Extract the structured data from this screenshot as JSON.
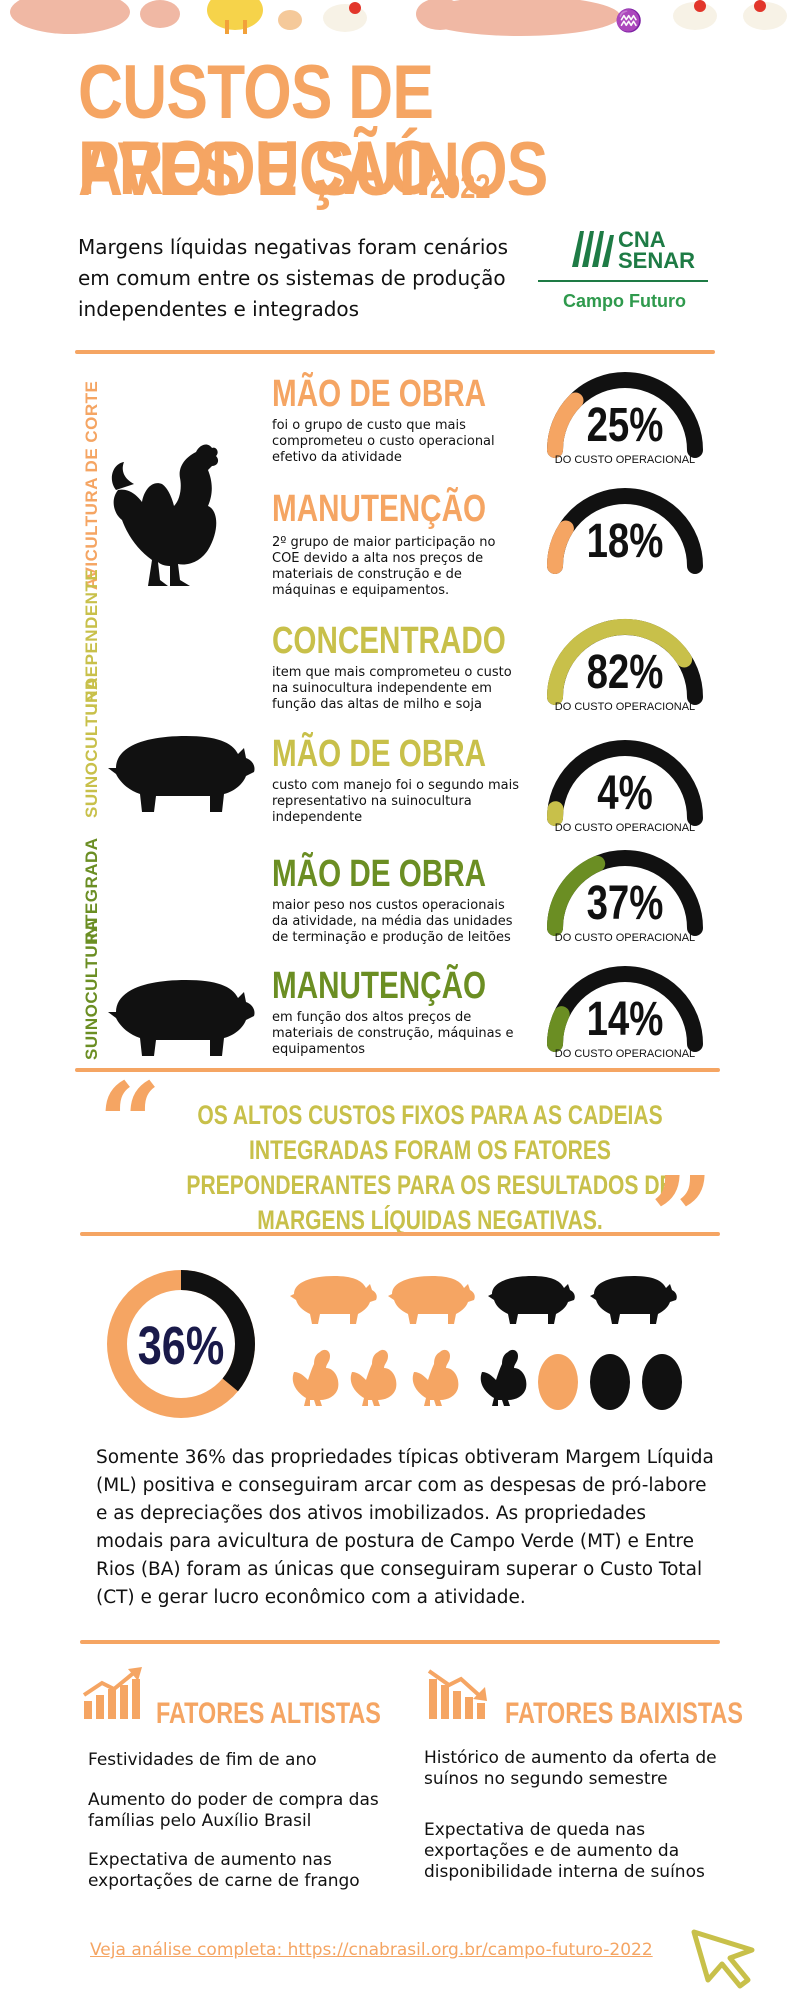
{
  "header": {
    "title_line1": "CUSTOS DE PRODUÇÃO",
    "title_line2": "AVES E SUÍNOS",
    "year": "2022",
    "intro": "Margens líquidas negativas foram cenários em comum entre os sistemas de produção independentes e integrados"
  },
  "logo": {
    "line1": "CNA",
    "line2": "SENAR",
    "sub": "Campo Futuro"
  },
  "sections": {
    "avicultura_label": "AVICULTURA DE CORTE",
    "independente_label": "INDEPENDENTE",
    "suino_indep_label": "SUINOCULTURA",
    "integrada_label": "INTEGRADA",
    "suino_integ_label": "SUINOCULTURA"
  },
  "items": [
    {
      "title": "MÃO DE OBRA",
      "desc": "foi o grupo de custo que mais comprometeu o custo operacional efetivo da atividade",
      "value": "25%",
      "fraction": 0.25,
      "sub": "DO CUSTO OPERACIONAL",
      "color": "#f5a563"
    },
    {
      "title": "MANUTENÇÃO",
      "desc": "2º grupo de maior participação no COE devido a alta nos preços de materiais de construção e de máquinas e equipamentos.",
      "value": "18%",
      "fraction": 0.18,
      "sub": "",
      "color": "#f5a563"
    },
    {
      "title": "CONCENTRADO",
      "desc": "item que mais comprometeu o custo na suinocultura independente em função das altas de milho e soja",
      "value": "82%",
      "fraction": 0.82,
      "sub": "DO CUSTO OPERACIONAL",
      "color": "#c8c04a"
    },
    {
      "title": "MÃO DE OBRA",
      "desc": "custo com manejo foi o segundo mais representativo na suinocultura independente",
      "value": "4%",
      "fraction": 0.04,
      "sub": "DO CUSTO OPERACIONAL",
      "color": "#c8c04a"
    },
    {
      "title": "MÃO DE OBRA",
      "desc": "maior peso nos custos operacionais da atividade, na média das unidades de terminação e produção de leitões",
      "value": "37%",
      "fraction": 0.37,
      "sub": "DO CUSTO OPERACIONAL",
      "color": "#6b8e23"
    },
    {
      "title": "MANUTENÇÃO",
      "desc": "em função dos altos preços de materiais de construção, máquinas e equipamentos",
      "value": "14%",
      "fraction": 0.14,
      "sub": "DO CUSTO OPERACIONAL",
      "color": "#6b8e23"
    }
  ],
  "quote": "OS ALTOS CUSTOS FIXOS PARA AS CADEIAS INTEGRADAS FORAM OS FATORES PREPONDERANTES PARA OS RESULTADOS DE MARGENS LÍQUIDAS NEGATIVAS.",
  "stat": {
    "value": "36%",
    "fraction": 0.36,
    "text": "Somente 36% das propriedades típicas obtiveram Margem Líquida (ML) positiva e conseguiram arcar com as despesas de pró-labore e as depreciações dos ativos imobilizados. As propriedades modais para avicultura de postura de Campo Verde (MT) e Entre Rios (BA) foram as únicas que conseguiram superar o Custo Total (CT) e gerar lucro econômico com a atividade."
  },
  "altistas": {
    "title": "FATORES ALTISTAS",
    "items": [
      "Festividades de fim de ano",
      "Aumento do poder de compra das famílias pelo Auxílio Brasil",
      "Expectativa de aumento nas exportações de carne de frango"
    ]
  },
  "baixistas": {
    "title": "FATORES BAIXISTAS",
    "items": [
      "Histórico de aumento da oferta de suínos no segundo semestre",
      "Expectativa de queda nas exportações e de aumento da disponibilidade interna de suínos"
    ]
  },
  "footer": {
    "link": "Veja análise completa: https://cnabrasil.org.br/campo-futuro-2022"
  },
  "colors": {
    "orange": "#f5a563",
    "yellow": "#c8c04a",
    "olive": "#6b8e23",
    "green": "#1e7b45",
    "black": "#111111"
  }
}
